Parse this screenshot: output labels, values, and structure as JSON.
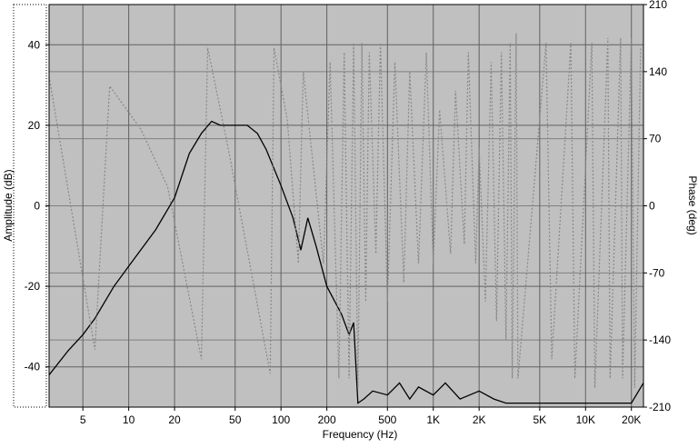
{
  "chart_data": {
    "type": "line",
    "xlabel": "Frequency (Hz)",
    "ylabel": "Amplitude (dB)",
    "y2label": "Phase (deg)",
    "xscale": "log",
    "xlim": [
      3,
      24000
    ],
    "xticks": [
      5,
      10,
      20,
      50,
      100,
      200,
      500,
      {
        "value": 1000,
        "label": "1K"
      },
      {
        "value": 2000,
        "label": "2K"
      },
      {
        "value": 5000,
        "label": "5K"
      },
      {
        "value": 10000,
        "label": "10K"
      },
      {
        "value": 20000,
        "label": "20K"
      }
    ],
    "ylim": [
      -50,
      50
    ],
    "yticks": [
      -40,
      -20,
      0,
      20,
      40
    ],
    "y2lim": [
      -210,
      210
    ],
    "y2ticks": [
      -210,
      -140,
      -70,
      0,
      70,
      140,
      210
    ],
    "grid": true,
    "series": [
      {
        "color": "#000000",
        "line_style": "solid",
        "axis": "y",
        "x": [
          3,
          4,
          5,
          6,
          8,
          10,
          15,
          20,
          25,
          30,
          35,
          40,
          50,
          60,
          70,
          80,
          100,
          120,
          135,
          150,
          170,
          200,
          250,
          280,
          300,
          320,
          350,
          400,
          500,
          600,
          700,
          800,
          1000,
          1200,
          1500,
          2000,
          2500,
          3000,
          20000,
          24000
        ],
        "values": [
          -42,
          -36,
          -32,
          -28,
          -20,
          -15,
          -6,
          2,
          13,
          18,
          21,
          20,
          20,
          20,
          18,
          14,
          5,
          -3,
          -11,
          -3,
          -10,
          -20,
          -27,
          -32,
          -29,
          -49,
          -48,
          -46,
          -47,
          -44,
          -48,
          -45,
          -47,
          -44,
          -48,
          -46,
          -48,
          -49,
          -49,
          -44
        ]
      },
      {
        "color": "#888888",
        "line_style": "dotted",
        "axis": "y2",
        "x": [
          3,
          6,
          7.5,
          12,
          18,
          30,
          33,
          45,
          85,
          90,
          110,
          130,
          140,
          190,
          210,
          240,
          260,
          280,
          300,
          320,
          340,
          360,
          380,
          420,
          450,
          500,
          560,
          640,
          700,
          800,
          900,
          1000,
          1100,
          1300,
          1400,
          1600,
          1700,
          1900,
          2000,
          2200,
          2400,
          2600,
          2800,
          3000,
          3200,
          3300,
          3500,
          3600,
          5500,
          6000,
          8000,
          8500,
          11000,
          11500,
          14000,
          14500,
          17000,
          17500,
          20000,
          21000,
          23000
        ],
        "values": [
          135,
          -150,
          125,
          80,
          20,
          -160,
          165,
          60,
          -175,
          165,
          90,
          -60,
          140,
          -60,
          150,
          -180,
          160,
          -180,
          170,
          -190,
          170,
          -100,
          160,
          -50,
          170,
          -100,
          150,
          -80,
          140,
          -60,
          160,
          -60,
          100,
          -50,
          120,
          -40,
          160,
          -60,
          60,
          -100,
          150,
          -120,
          160,
          -140,
          170,
          -180,
          180,
          -180,
          170,
          -160,
          170,
          -180,
          170,
          -190,
          175,
          -180,
          175,
          -180,
          175,
          -190,
          165
        ]
      }
    ]
  }
}
